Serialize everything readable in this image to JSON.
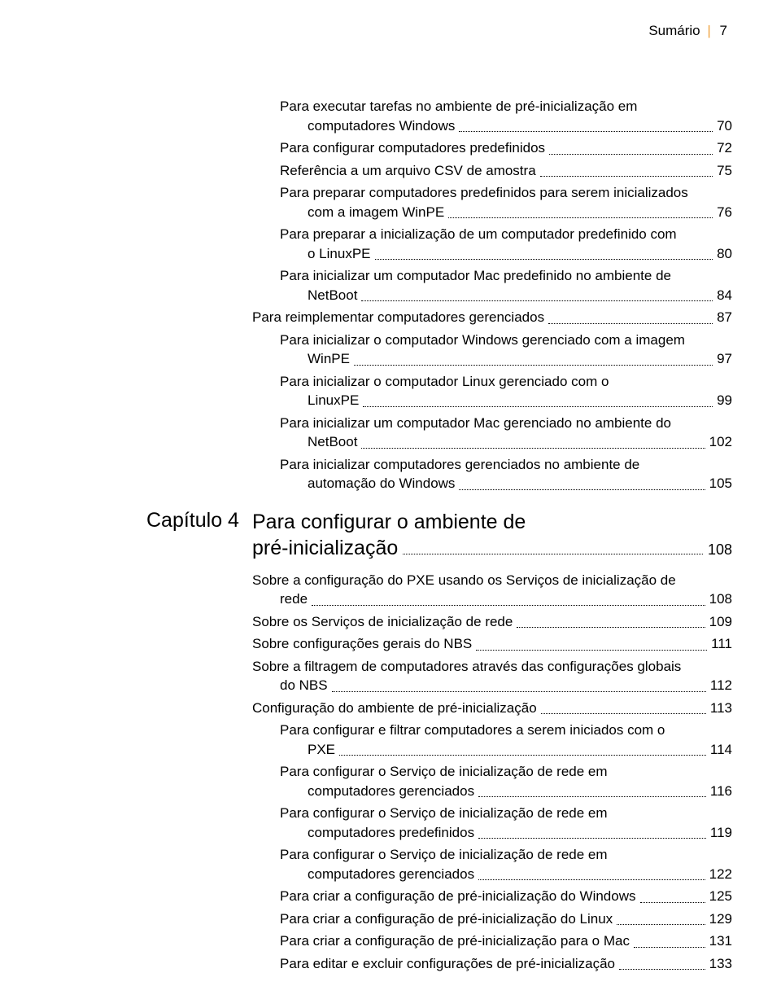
{
  "header": {
    "title": "Sumário",
    "page": "7"
  },
  "block1": {
    "entries": [
      {
        "level": 2,
        "wrap": true,
        "line1": "Para executar tarefas no ambiente de pré-inicialização em",
        "line2": "computadores Windows",
        "page": "70"
      },
      {
        "level": 2,
        "text": "Para configurar computadores predefinidos",
        "page": "72"
      },
      {
        "level": 2,
        "text": "Referência a um arquivo CSV de amostra",
        "page": "75"
      },
      {
        "level": 2,
        "wrap": true,
        "line1": "Para preparar computadores predefinidos para serem inicializados",
        "line2": "com a imagem WinPE",
        "page": "76"
      },
      {
        "level": 2,
        "wrap": true,
        "line1": "Para preparar a inicialização de um computador predefinido com",
        "line2": "o LinuxPE",
        "page": "80"
      },
      {
        "level": 2,
        "wrap": true,
        "line1": "Para inicializar um computador Mac predefinido no ambiente de",
        "line2": "NetBoot",
        "page": "84"
      },
      {
        "level": 1,
        "text": "Para reimplementar computadores gerenciados",
        "page": "87"
      },
      {
        "level": 2,
        "wrap": true,
        "line1": "Para inicializar o computador Windows gerenciado com a imagem",
        "line2": "WinPE",
        "page": "97"
      },
      {
        "level": 2,
        "wrap": true,
        "line1": "Para inicializar o computador Linux gerenciado com o",
        "line2": "LinuxPE",
        "page": "99"
      },
      {
        "level": 2,
        "wrap": true,
        "line1": "Para inicializar um computador Mac gerenciado no ambiente do",
        "line2": "NetBoot",
        "page": "102"
      },
      {
        "level": 2,
        "wrap": true,
        "line1": "Para inicializar computadores gerenciados no ambiente de",
        "line2": "automação do Windows",
        "page": "105"
      }
    ]
  },
  "chapter": {
    "label": "Capítulo 4",
    "title1": "Para configurar o ambiente de",
    "title2": "pré-inicialização",
    "page": "108"
  },
  "block2": {
    "entries": [
      {
        "level": 1,
        "wrap": true,
        "line1": "Sobre a configuração do PXE usando os Serviços de inicialização de",
        "line2": "rede",
        "page": "108"
      },
      {
        "level": 1,
        "text": "Sobre os Serviços de inicialização de rede",
        "page": "109"
      },
      {
        "level": 1,
        "text": "Sobre configurações gerais do NBS",
        "page": "111"
      },
      {
        "level": 1,
        "wrap": true,
        "line1": "Sobre a filtragem de computadores através das configurações globais",
        "line2": "do NBS",
        "page": "112"
      },
      {
        "level": 1,
        "text": "Configuração do ambiente de pré-inicialização",
        "page": "113"
      },
      {
        "level": 2,
        "wrap": true,
        "line1": "Para configurar e filtrar computadores a serem iniciados com o",
        "line2": "PXE",
        "page": "114"
      },
      {
        "level": 2,
        "wrap": true,
        "line1": "Para configurar o Serviço de inicialização de rede em",
        "line2": "computadores gerenciados",
        "page": "116"
      },
      {
        "level": 2,
        "wrap": true,
        "line1": "Para configurar o Serviço de inicialização de rede em",
        "line2": "computadores predefinidos",
        "page": "119"
      },
      {
        "level": 2,
        "wrap": true,
        "line1": "Para configurar o Serviço de inicialização de rede em",
        "line2": "computadores gerenciados",
        "page": "122"
      },
      {
        "level": 2,
        "text": "Para criar a configuração de pré-inicialização do Windows",
        "page": "125"
      },
      {
        "level": 2,
        "text": "Para criar a configuração de pré-inicialização do Linux",
        "page": "129"
      },
      {
        "level": 2,
        "text": "Para criar a configuração de pré-inicialização para o Mac",
        "page": "131"
      },
      {
        "level": 2,
        "text": "Para editar e excluir configurações de pré-inicialização",
        "page": "133"
      }
    ]
  }
}
